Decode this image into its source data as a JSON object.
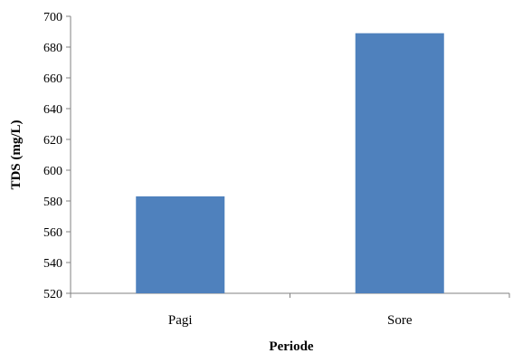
{
  "chart_data": {
    "type": "bar",
    "categories": [
      "Pagi",
      "Sore"
    ],
    "values": [
      583,
      689
    ],
    "xlabel": "Periode",
    "ylabel": "TDS (mg/L)",
    "ylim": [
      520,
      700
    ],
    "yticks": [
      520,
      540,
      560,
      580,
      600,
      620,
      640,
      660,
      680,
      700
    ],
    "grid": false,
    "legend": "none",
    "bar_color": "#4f81bd"
  }
}
